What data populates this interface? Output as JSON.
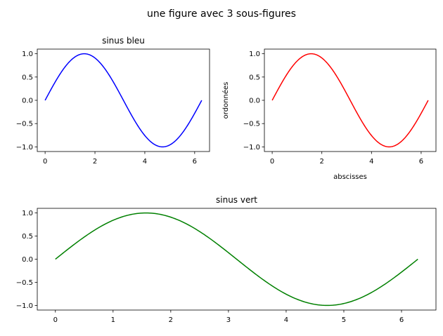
{
  "suptitle": "une figure avec 3 sous-figures",
  "chart_data": [
    {
      "type": "line",
      "title": "sinus bleu",
      "xlabel": "",
      "ylabel": "",
      "function": "sin(x)",
      "x_range": [
        0,
        6.283
      ],
      "xlim": [
        -0.314,
        6.597
      ],
      "ylim": [
        -1.1,
        1.1
      ],
      "xticks": [
        0,
        2,
        4,
        6
      ],
      "xtick_labels": [
        "0",
        "2",
        "4",
        "6"
      ],
      "yticks": [
        1.0,
        0.5,
        0.0,
        -0.5,
        -1.0
      ],
      "ytick_labels": [
        "1.0",
        "0.5",
        "0.0",
        "−0.5",
        "−1.0"
      ],
      "color": "#0000ff"
    },
    {
      "type": "line",
      "title": "",
      "xlabel": "abscisses",
      "ylabel": "ordonnées",
      "function": "sin(x)",
      "x_range": [
        0,
        6.283
      ],
      "xlim": [
        -0.314,
        6.597
      ],
      "ylim": [
        -1.1,
        1.1
      ],
      "xticks": [
        0,
        2,
        4,
        6
      ],
      "xtick_labels": [
        "0",
        "2",
        "4",
        "6"
      ],
      "yticks": [
        1.0,
        0.5,
        0.0,
        -0.5,
        -1.0
      ],
      "ytick_labels": [
        "1.0",
        "0.5",
        "0.0",
        "−0.5",
        "−1.0"
      ],
      "color": "#ff0000"
    },
    {
      "type": "line",
      "title": "sinus vert",
      "xlabel": "",
      "ylabel": "",
      "function": "sin(x)",
      "x_range": [
        0,
        6.283
      ],
      "xlim": [
        -0.314,
        6.597
      ],
      "ylim": [
        -1.1,
        1.1
      ],
      "xticks": [
        0,
        1,
        2,
        3,
        4,
        5,
        6
      ],
      "xtick_labels": [
        "0",
        "1",
        "2",
        "3",
        "4",
        "5",
        "6"
      ],
      "yticks": [
        1.0,
        0.5,
        0.0,
        -0.5,
        -1.0
      ],
      "ytick_labels": [
        "1.0",
        "0.5",
        "0.0",
        "−0.5",
        "−1.0"
      ],
      "color": "#008000"
    }
  ]
}
